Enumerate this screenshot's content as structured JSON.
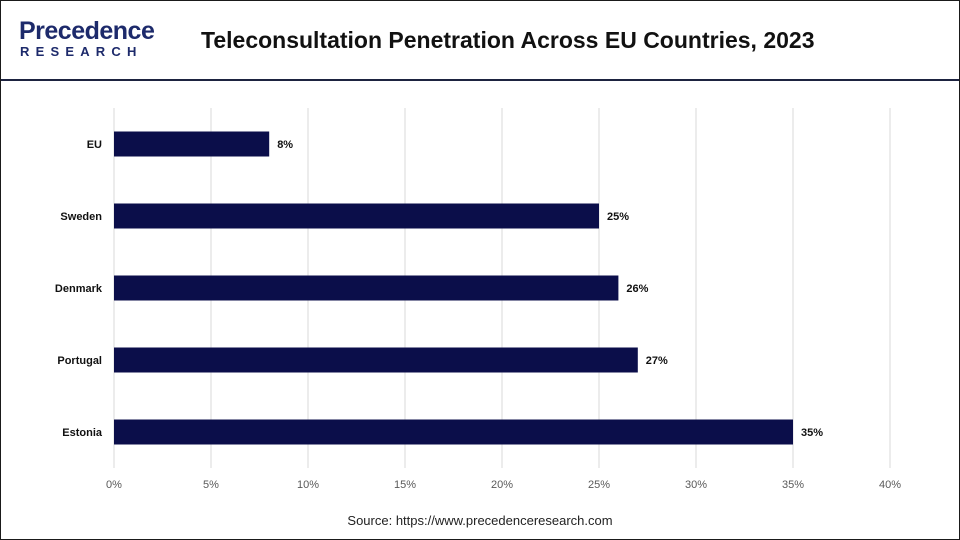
{
  "header": {
    "logo_top": "Precedence",
    "logo_bottom": "RESEARCH",
    "title": "Teleconsultation Penetration Across EU Countries, 2023"
  },
  "footer": {
    "source": "Source: https://www.precedenceresearch.com"
  },
  "colors": {
    "bar": "#0b0e4a",
    "grid": "#d9d9d9",
    "tick_text": "#595959",
    "label_text": "#111111"
  },
  "chart_data": {
    "type": "bar",
    "orientation": "horizontal",
    "title": "Teleconsultation Penetration Across EU Countries, 2023",
    "categories": [
      "EU",
      "Sweden",
      "Denmark",
      "Portugal",
      "Estonia"
    ],
    "values": [
      8,
      25,
      26,
      27,
      35
    ],
    "data_labels": [
      "8%",
      "25%",
      "26%",
      "27%",
      "35%"
    ],
    "xlim": [
      0,
      40
    ],
    "x_ticks": [
      0,
      5,
      10,
      15,
      20,
      25,
      30,
      35,
      40
    ],
    "x_tick_labels": [
      "0%",
      "5%",
      "10%",
      "15%",
      "20%",
      "25%",
      "30%",
      "35%",
      "40%"
    ],
    "xlabel": "",
    "ylabel": "",
    "grid": true,
    "legend": "none"
  }
}
